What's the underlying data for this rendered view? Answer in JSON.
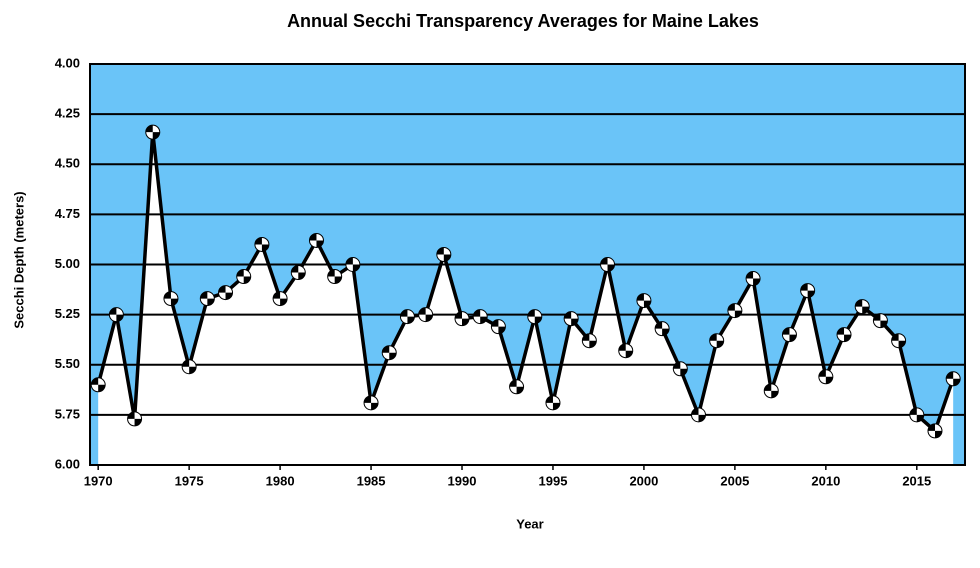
{
  "chart_data": {
    "type": "line",
    "title": "Annual Secchi Transparency Averages for Maine Lakes",
    "x_label": "Year",
    "y_label": "Secchi Depth (meters)",
    "x": [
      1970,
      1971,
      1972,
      1973,
      1974,
      1975,
      1976,
      1977,
      1978,
      1979,
      1980,
      1981,
      1982,
      1983,
      1984,
      1985,
      1986,
      1987,
      1988,
      1989,
      1990,
      1991,
      1992,
      1993,
      1994,
      1995,
      1996,
      1997,
      1998,
      1999,
      2000,
      2001,
      2002,
      2003,
      2004,
      2005,
      2006,
      2007,
      2008,
      2009,
      2010,
      2011,
      2012,
      2013,
      2014,
      2015,
      2016,
      2017
    ],
    "values": [
      5.6,
      5.25,
      5.77,
      4.34,
      5.17,
      5.51,
      5.17,
      5.14,
      5.06,
      4.9,
      5.17,
      5.04,
      4.88,
      5.06,
      5.0,
      5.69,
      5.44,
      5.26,
      5.25,
      4.95,
      5.27,
      5.26,
      5.31,
      5.61,
      5.26,
      5.69,
      5.27,
      5.38,
      5.0,
      5.43,
      5.18,
      5.32,
      5.52,
      5.75,
      5.38,
      5.23,
      5.07,
      5.63,
      5.35,
      5.13,
      5.56,
      5.35,
      5.21,
      5.28,
      5.38,
      5.75,
      5.83,
      5.57
    ],
    "color": "#000000",
    "background_color": "#6ac4f8",
    "area_color": "#ffffff",
    "xlim": [
      1969.55,
      2017.65
    ],
    "xticks": [
      1970,
      1975,
      1980,
      1985,
      1990,
      1995,
      2000,
      2005,
      2010,
      2015
    ],
    "ylim": [
      4,
      6
    ],
    "y_inverted": true,
    "yticks": [
      {
        "value": 4,
        "label": "4.00"
      },
      {
        "value": 4.25,
        "label": "4.25"
      },
      {
        "value": 4.5,
        "label": "4.50"
      },
      {
        "value": 4.75,
        "label": "4.75"
      },
      {
        "value": 5,
        "label": "5.00"
      },
      {
        "value": 5.25,
        "label": "5.25"
      },
      {
        "value": 5.5,
        "label": "5.50"
      },
      {
        "value": 5.75,
        "label": "5.75"
      },
      {
        "value": 6,
        "label": "6.00"
      }
    ],
    "grid": true
  }
}
